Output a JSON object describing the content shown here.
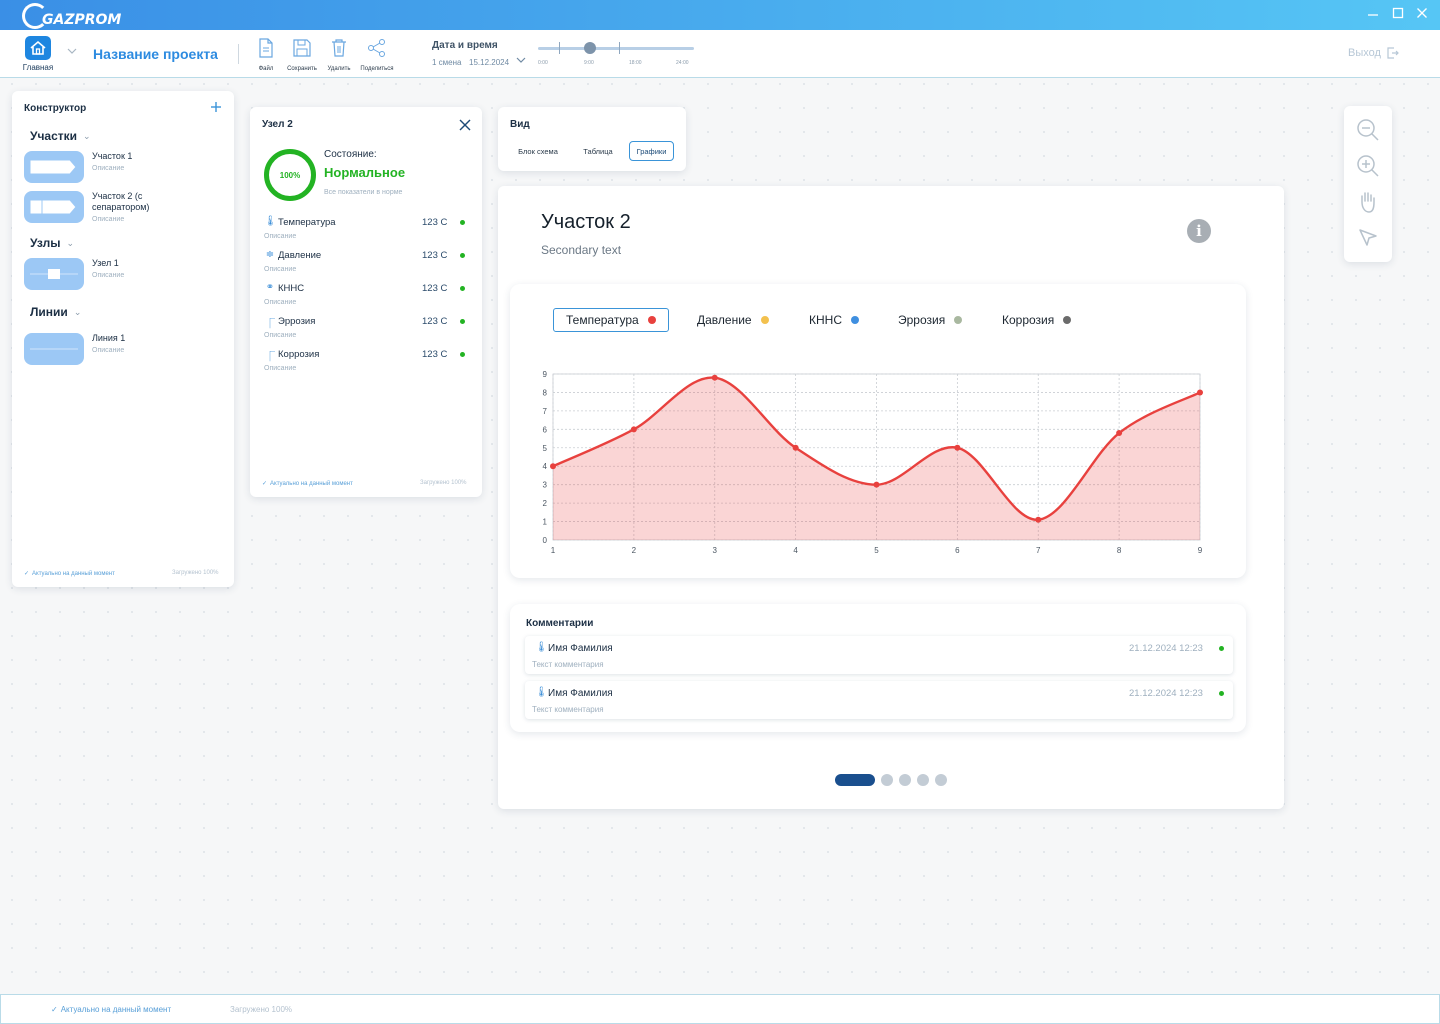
{
  "app": {
    "logo_text": "GAZPROM"
  },
  "toolbar": {
    "home_label": "Главная",
    "project_title": "Название проекта",
    "tools": [
      "Файл",
      "Сохранить",
      "Удалить",
      "Поделиться"
    ],
    "datetime_title": "Дата и время",
    "shift": "1 смена",
    "date": "15.12.2024",
    "slider_labels": [
      "0:00",
      "9:00",
      "18:00",
      "24:00"
    ],
    "exit_label": "Выход"
  },
  "constructor": {
    "title": "Конструктор",
    "sections": {
      "areas": "Участки",
      "nodes": "Узлы",
      "lines": "Линии"
    },
    "items": [
      {
        "label": "Участок 1",
        "desc": "Описание"
      },
      {
        "label": "Участок 2 (с сепаратором)",
        "desc": "Описание"
      },
      {
        "label": "Узел 1",
        "desc": "Описание"
      },
      {
        "label": "Линия 1",
        "desc": "Описание"
      }
    ],
    "footer_status": "Актуально на данный момент",
    "footer_loaded": "Загружено 100%"
  },
  "node": {
    "title": "Узел 2",
    "percent": "100%",
    "state_label": "Состояние:",
    "state_value": "Нормальное",
    "state_desc": "Все показатели в норме",
    "params": [
      {
        "name": "Температура",
        "desc": "Описание",
        "value": "123 С"
      },
      {
        "name": "Давление",
        "desc": "Описание",
        "value": "123 С"
      },
      {
        "name": "КННС",
        "desc": "Описание",
        "value": "123 С"
      },
      {
        "name": "Эррозия",
        "desc": "Описание",
        "value": "123 С"
      },
      {
        "name": "Коррозия",
        "desc": "Описание",
        "value": "123 С"
      }
    ],
    "footer_status": "Актуально на данный момент",
    "footer_loaded": "Загружено 100%"
  },
  "view": {
    "title": "Вид",
    "tabs": [
      "Блок схема",
      "Таблица",
      "Графики"
    ],
    "active_tab": "Графики"
  },
  "main": {
    "title": "Участок 2",
    "subtitle": "Secondary text",
    "legend": [
      {
        "name": "Температура",
        "color": "#e8413e",
        "active": true
      },
      {
        "name": "Давление",
        "color": "#f3c14e",
        "active": false
      },
      {
        "name": "КННС",
        "color": "#3f8fe0",
        "active": false
      },
      {
        "name": "Эррозия",
        "color": "#a9b8a0",
        "active": false
      },
      {
        "name": "Коррозия",
        "color": "#6b6b6b",
        "active": false
      }
    ],
    "comments_title": "Комментарии",
    "comments": [
      {
        "name": "Имя Фамилия",
        "text": "Текст комментария",
        "date": "21.12.2024  12:23"
      },
      {
        "name": "Имя Фамилия",
        "text": "Текст комментария",
        "date": "21.12.2024  12:23"
      }
    ],
    "pager": {
      "pages": 5,
      "current": 1
    }
  },
  "chart_data": {
    "type": "area",
    "x": [
      1,
      2,
      3,
      4,
      5,
      6,
      7,
      8,
      9
    ],
    "series": [
      {
        "name": "Температура",
        "color": "#e8413e",
        "values": [
          4,
          6,
          8.8,
          5,
          3,
          5,
          1.1,
          5.8,
          8
        ]
      }
    ],
    "xlim": [
      1,
      9
    ],
    "ylim": [
      0,
      9
    ],
    "yticks": [
      0,
      1,
      2,
      3,
      4,
      5,
      6,
      7,
      8,
      9
    ],
    "xticks": [
      1,
      2,
      3,
      4,
      5,
      6,
      7,
      8,
      9
    ],
    "grid": true
  },
  "footer": {
    "status": "Актуально на данный момент",
    "loaded": "Загружено 100%"
  }
}
